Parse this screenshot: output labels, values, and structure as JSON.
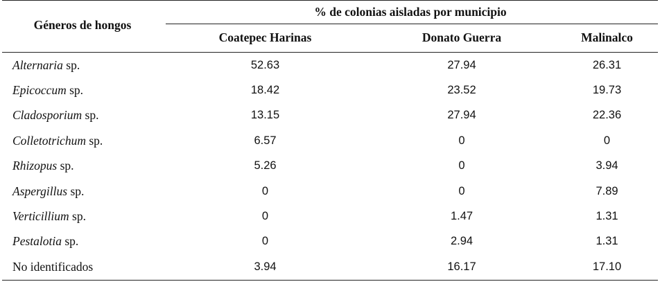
{
  "table": {
    "genus_header": "Géneros de hongos",
    "group_header": "% de colonias aisladas por municipio",
    "columns": [
      "Coatepec Harinas",
      "Donato Guerra",
      "Malinalco"
    ],
    "rows": [
      {
        "genus": "Alternaria",
        "suffix": " sp.",
        "italic": true,
        "values": [
          "52.63",
          "27.94",
          "26.31"
        ]
      },
      {
        "genus": "Epicoccum",
        "suffix": " sp.",
        "italic": true,
        "values": [
          "18.42",
          "23.52",
          "19.73"
        ]
      },
      {
        "genus": "Cladosporium",
        "suffix": " sp.",
        "italic": true,
        "values": [
          "13.15",
          "27.94",
          "22.36"
        ]
      },
      {
        "genus": "Colletotrichum",
        "suffix": " sp.",
        "italic": true,
        "values": [
          "6.57",
          "0",
          "0"
        ]
      },
      {
        "genus": "Rhizopus",
        "suffix": " sp.",
        "italic": true,
        "values": [
          "5.26",
          "0",
          "3.94"
        ]
      },
      {
        "genus": "Aspergillus",
        "suffix": " sp.",
        "italic": true,
        "values": [
          "0",
          "0",
          "7.89"
        ]
      },
      {
        "genus": "Verticillium",
        "suffix": " sp.",
        "italic": true,
        "values": [
          "0",
          "1.47",
          "1.31"
        ]
      },
      {
        "genus": "Pestalotia",
        "suffix": " sp.",
        "italic": true,
        "values": [
          "0",
          "2.94",
          "1.31"
        ]
      },
      {
        "genus": "No identificados",
        "suffix": "",
        "italic": false,
        "values": [
          "3.94",
          "16.17",
          "17.10"
        ]
      }
    ]
  }
}
